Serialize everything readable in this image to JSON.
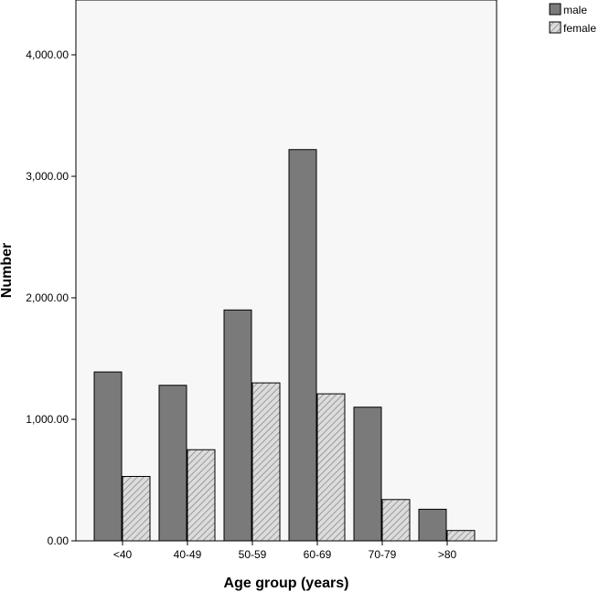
{
  "chart_data": {
    "type": "bar",
    "title": "",
    "xlabel": "Age group (years)",
    "ylabel": "Number",
    "categories": [
      "<40",
      "40-49",
      "50-59",
      "60-69",
      "70-79",
      ">80"
    ],
    "ylim": [
      0,
      4500
    ],
    "yticks": [
      0,
      1000,
      2000,
      3000,
      4000
    ],
    "ytick_labels": [
      "0.00",
      "1,000.00",
      "2,000.00",
      "3,000.00",
      "4,000.00"
    ],
    "grid": false,
    "legend_position": "top-right outside",
    "series": [
      {
        "name": "male",
        "values": [
          1390,
          1280,
          1900,
          3220,
          1100,
          260
        ],
        "color": "#7a7a7a",
        "pattern": "solid"
      },
      {
        "name": "female",
        "values": [
          530,
          750,
          1300,
          1210,
          340,
          85
        ],
        "color": "#d9d9d9",
        "pattern": "diagonal-hatch"
      }
    ]
  }
}
